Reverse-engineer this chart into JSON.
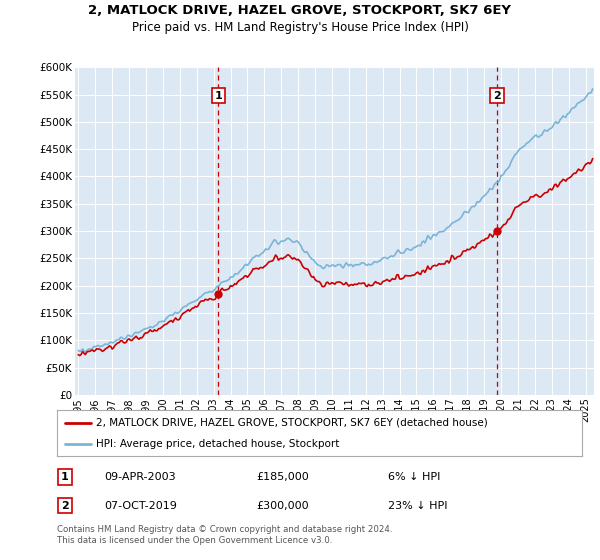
{
  "title": "2, MATLOCK DRIVE, HAZEL GROVE, STOCKPORT, SK7 6EY",
  "subtitle": "Price paid vs. HM Land Registry's House Price Index (HPI)",
  "legend_line1": "2, MATLOCK DRIVE, HAZEL GROVE, STOCKPORT, SK7 6EY (detached house)",
  "legend_line2": "HPI: Average price, detached house, Stockport",
  "transaction1_date": "09-APR-2003",
  "transaction1_price": "£185,000",
  "transaction1_hpi": "6% ↓ HPI",
  "transaction2_date": "07-OCT-2019",
  "transaction2_price": "£300,000",
  "transaction2_hpi": "23% ↓ HPI",
  "footer": "Contains HM Land Registry data © Crown copyright and database right 2024.\nThis data is licensed under the Open Government Licence v3.0.",
  "hpi_color": "#7ab5d8",
  "price_color": "#cc0000",
  "vline_color": "#cc0000",
  "plot_bg_color": "#dce8f4",
  "ylim": [
    0,
    600000
  ],
  "yticks": [
    0,
    50000,
    100000,
    150000,
    200000,
    250000,
    300000,
    350000,
    400000,
    450000,
    500000,
    550000,
    600000
  ],
  "xstart": 1994.8,
  "xend": 2025.5,
  "t1_year": 2003.27,
  "t1_price": 185000,
  "t2_year": 2019.77,
  "t2_price": 300000
}
